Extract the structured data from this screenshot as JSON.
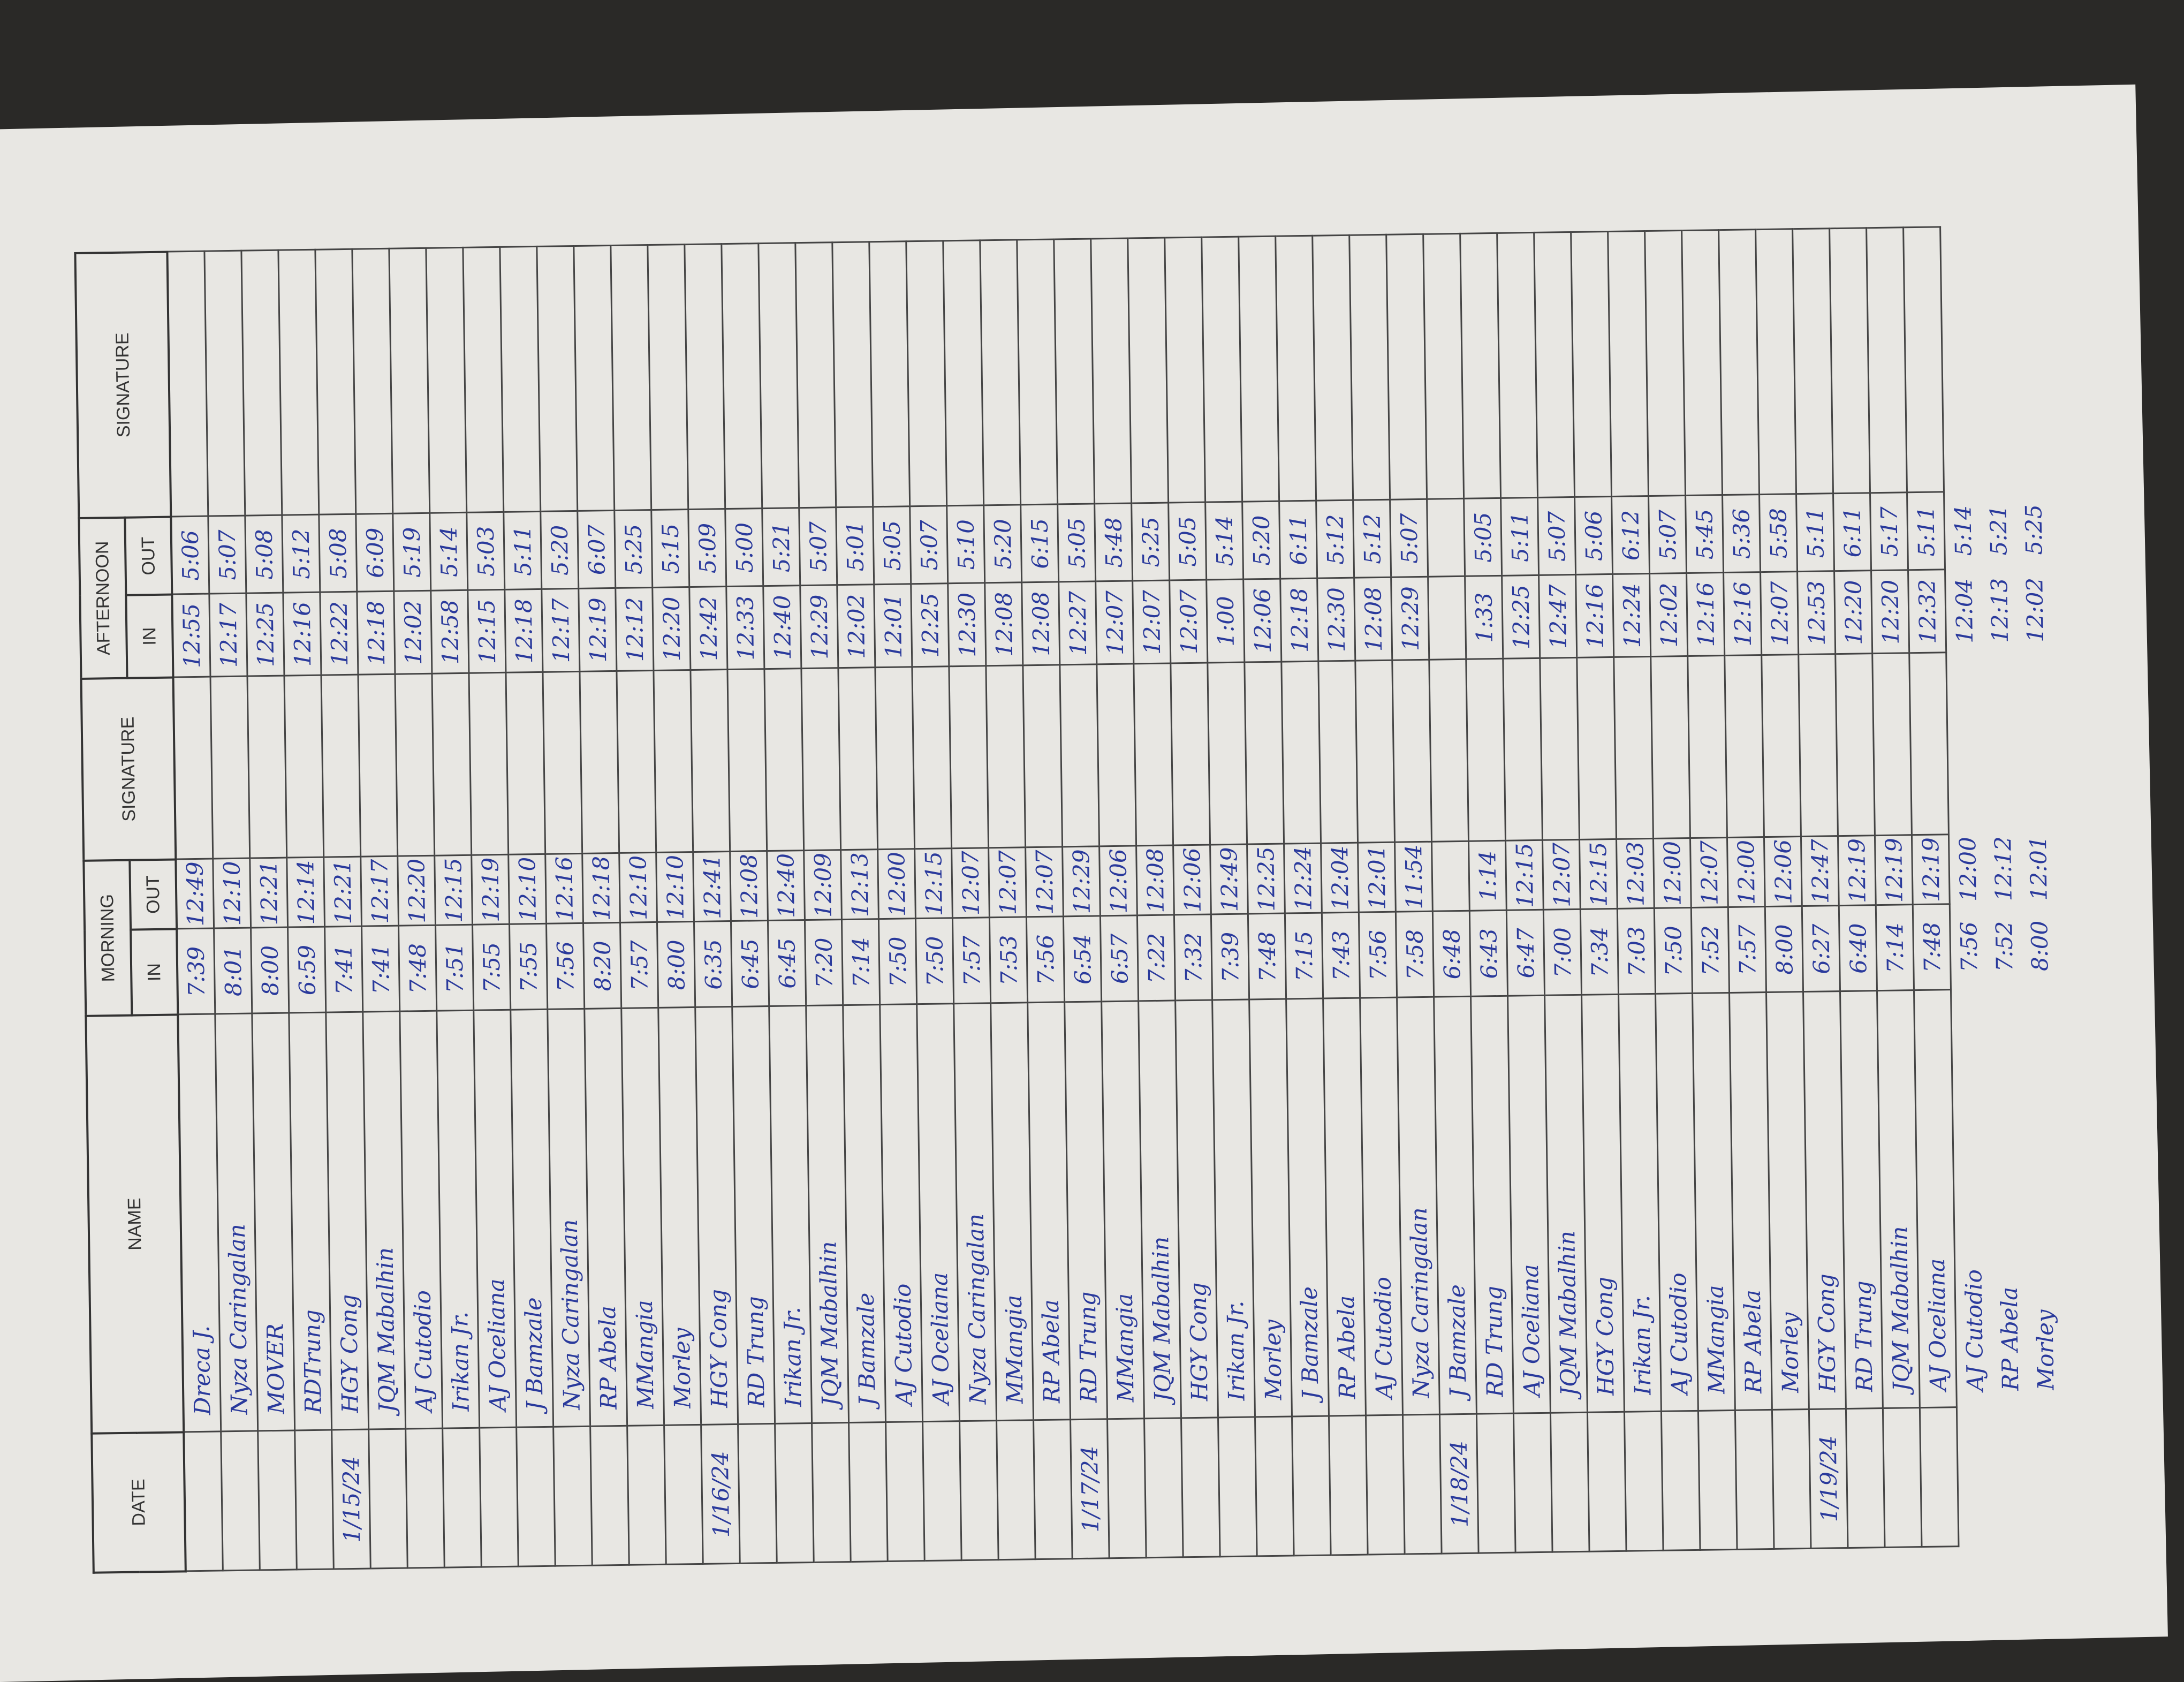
{
  "header": {
    "date": "DATE",
    "name": "NAME",
    "morning": "MORNING",
    "afternoon": "AFTERNOON",
    "in": "IN",
    "out": "OUT",
    "signature": "SIGNATURE"
  },
  "rows": [
    [
      null,
      "Dreca J.",
      "7:39",
      "12:49",
      "12:55",
      "5:06"
    ],
    [
      null,
      "Nyza Caringalan",
      "8:01",
      "12:10",
      "12:17",
      "5:07"
    ],
    [
      null,
      "MOVER",
      "8:00",
      "12:21",
      "12:25",
      "5:08"
    ],
    [
      null,
      "RDTrung",
      "6:59",
      "12:14",
      "12:16",
      "5:12"
    ],
    [
      "1/15/24",
      "HGY Cong",
      "7:41",
      "12:21",
      "12:22",
      "5:08"
    ],
    [
      null,
      "JQM Mabalhin",
      "7:41",
      "12:17",
      "12:18",
      "6:09"
    ],
    [
      null,
      "AJ Cutodio",
      "7:48",
      "12:20",
      "12:02",
      "5:19"
    ],
    [
      null,
      "Irikan Jr.",
      "7:51",
      "12:15",
      "12:58",
      "5:14"
    ],
    [
      null,
      "AJ Oceliana",
      "7:55",
      "12:19",
      "12:15",
      "5:03"
    ],
    [
      null,
      "J Bamzale",
      "7:55",
      "12:10",
      "12:18",
      "5:11"
    ],
    [
      null,
      "Nyza Caringalan",
      "7:56",
      "12:16",
      "12:17",
      "5:20"
    ],
    [
      null,
      "RP Abela",
      "8:20",
      "12:18",
      "12:19",
      "6:07"
    ],
    [
      null,
      "MMangia",
      "7:57",
      "12:10",
      "12:12",
      "5:25"
    ],
    [
      null,
      "Morley",
      "8:00",
      "12:10",
      "12:20",
      "5:15"
    ],
    [
      "1/16/24",
      "HGY Cong",
      "6:35",
      "12:41",
      "12:42",
      "5:09"
    ],
    [
      null,
      "RD Trung",
      "6:45",
      "12:08",
      "12:33",
      "5:00"
    ],
    [
      null,
      "Irikan Jr.",
      "6:45",
      "12:40",
      "12:40",
      "5:21"
    ],
    [
      null,
      "JQM Mabalhin",
      "7:20",
      "12:09",
      "12:29",
      "5:07"
    ],
    [
      null,
      "J Bamzale",
      "7:14",
      "12:13",
      "12:02",
      "5:01"
    ],
    [
      null,
      "AJ Cutodio",
      "7:50",
      "12:00",
      "12:01",
      "5:05"
    ],
    [
      null,
      "AJ Oceliana",
      "7:50",
      "12:15",
      "12:25",
      "5:07"
    ],
    [
      null,
      "Nyza Caringalan",
      "7:57",
      "12:07",
      "12:30",
      "5:10"
    ],
    [
      null,
      "MMangia",
      "7:53",
      "12:07",
      "12:08",
      "5:20"
    ],
    [
      null,
      "RP Abela",
      "7:56",
      "12:07",
      "12:08",
      "6:15"
    ],
    [
      "1/17/24",
      "RD Trung",
      "6:54",
      "12:29",
      "12:27",
      "5:05"
    ],
    [
      null,
      "MMangia",
      "6:57",
      "12:06",
      "12:07",
      "5:48"
    ],
    [
      null,
      "JQM Mabalhin",
      "7:22",
      "12:08",
      "12:07",
      "5:25"
    ],
    [
      null,
      "HGY Cong",
      "7:32",
      "12:06",
      "12:07",
      "5:05"
    ],
    [
      null,
      "Irikan Jr.",
      "7:39",
      "12:49",
      "1:00",
      "5:14"
    ],
    [
      null,
      "Morley",
      "7:48",
      "12:25",
      "12:06",
      "5:20"
    ],
    [
      null,
      "J Bamzale",
      "7:15",
      "12:24",
      "12:18",
      "6:11"
    ],
    [
      null,
      "RP Abela",
      "7:43",
      "12:04",
      "12:30",
      "5:12"
    ],
    [
      null,
      "AJ Cutodio",
      "7:56",
      "12:01",
      "12:08",
      "5:12"
    ],
    [
      null,
      "Nyza Caringalan",
      "7:58",
      "11:54",
      "12:29",
      "5:07"
    ],
    [
      "1/18/24",
      "J Bamzale",
      "6:48",
      null,
      null,
      null
    ],
    [
      null,
      "RD Trung",
      "6:43",
      "1:14",
      "1:33",
      "5:05"
    ],
    [
      null,
      "AJ Oceliana",
      "6:47",
      "12:15",
      "12:25",
      "5:11"
    ],
    [
      null,
      "JQM Mabalhin",
      "7:00",
      "12:07",
      "12:47",
      "5:07"
    ],
    [
      null,
      "HGY Cong",
      "7:34",
      "12:15",
      "12:16",
      "5:06"
    ],
    [
      null,
      "Irikan Jr.",
      "7:03",
      "12:03",
      "12:24",
      "6:12"
    ],
    [
      null,
      "AJ Cutodio",
      "7:50",
      "12:00",
      "12:02",
      "5:07"
    ],
    [
      null,
      "MMangia",
      "7:52",
      "12:07",
      "12:16",
      "5:45"
    ],
    [
      null,
      "RP Abela",
      "7:57",
      "12:00",
      "12:16",
      "5:36"
    ],
    [
      null,
      "Morley",
      "8:00",
      "12:06",
      "12:07",
      "5:58"
    ],
    [
      "1/19/24",
      "HGY Cong",
      "6:27",
      "12:47",
      "12:53",
      "5:11"
    ],
    [
      null,
      "RD Trung",
      "6:40",
      "12:19",
      "12:20",
      "6:11"
    ],
    [
      null,
      "JQM Mabalhin",
      "7:14",
      "12:19",
      "12:20",
      "5:17"
    ],
    [
      null,
      "AJ Oceliana",
      "7:48",
      "12:19",
      "12:32",
      "5:11"
    ]
  ],
  "extra_rows": [
    [
      null,
      "AJ Cutodio",
      "7:56",
      "12:00",
      "12:04",
      "5:14"
    ],
    [
      null,
      "RP Abela",
      "7:52",
      "12:12",
      "12:13",
      "5:21"
    ],
    [
      null,
      "Morley",
      "8:00",
      "12:01",
      "12:02",
      "5:25"
    ]
  ]
}
